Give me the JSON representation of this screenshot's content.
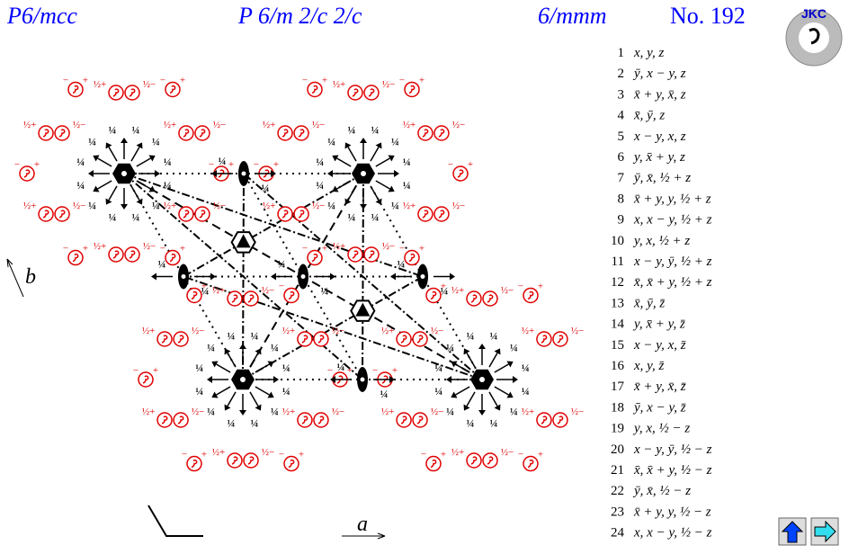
{
  "header": {
    "short_symbol": "P6/mcc",
    "full_symbol": "P 6/m 2/c 2/c",
    "point_group": "6/mmm",
    "number": "No. 192"
  },
  "logo": "JKC",
  "diagram": {
    "axis_a": "a",
    "axis_b": "b",
    "height_label": "¼",
    "half": "½",
    "plus": "+",
    "minus": "−"
  },
  "positions": [
    {
      "n": 1,
      "coord": "x, y, z"
    },
    {
      "n": 2,
      "coord": "ȳ, x − y, z"
    },
    {
      "n": 3,
      "coord": "x̄ + y, x̄, z"
    },
    {
      "n": 4,
      "coord": "x̄, ȳ, z"
    },
    {
      "n": 5,
      "coord": "x − y, x, z"
    },
    {
      "n": 6,
      "coord": "y, x̄ + y, z"
    },
    {
      "n": 7,
      "coord": "ȳ, x̄, ½ + z"
    },
    {
      "n": 8,
      "coord": "x̄ + y, y, ½ + z"
    },
    {
      "n": 9,
      "coord": "x, x − y, ½ + z"
    },
    {
      "n": 10,
      "coord": "y, x, ½ + z"
    },
    {
      "n": 11,
      "coord": "x − y, ȳ, ½ + z"
    },
    {
      "n": 12,
      "coord": "x̄, x̄ + y, ½ + z"
    },
    {
      "n": 13,
      "coord": "x̄, ȳ, z̄"
    },
    {
      "n": 14,
      "coord": "y, x̄ + y, z̄"
    },
    {
      "n": 15,
      "coord": "x − y, x, z̄"
    },
    {
      "n": 16,
      "coord": "x, y, z̄"
    },
    {
      "n": 17,
      "coord": "x̄ + y, x̄, z̄"
    },
    {
      "n": 18,
      "coord": "ȳ, x − y, z̄"
    },
    {
      "n": 19,
      "coord": "y, x, ½ − z"
    },
    {
      "n": 20,
      "coord": "x − y, ȳ, ½ − z"
    },
    {
      "n": 21,
      "coord": "x̄, x̄ + y, ½ − z"
    },
    {
      "n": 22,
      "coord": "ȳ, x̄, ½ − z"
    },
    {
      "n": 23,
      "coord": "x̄ + y, y, ½ − z"
    },
    {
      "n": 24,
      "coord": "x, x − y, ½ − z"
    }
  ]
}
